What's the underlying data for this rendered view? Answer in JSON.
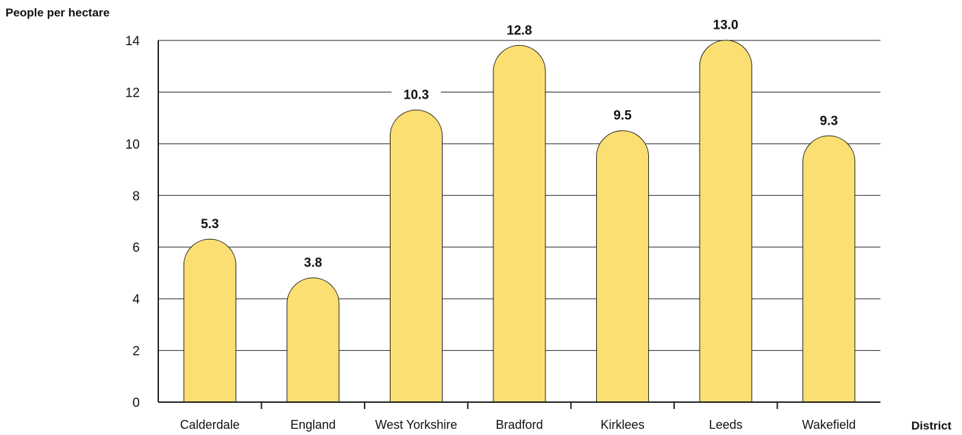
{
  "chart_data": {
    "type": "bar",
    "title": "",
    "ylabel": "People per hectare",
    "xlabel": "District",
    "categories": [
      "Calderdale",
      "England",
      "West Yorkshire",
      "Bradford",
      "Kirklees",
      "Leeds",
      "Wakefield"
    ],
    "values": [
      5.3,
      3.8,
      10.3,
      12.8,
      9.5,
      13.0,
      9.3
    ],
    "data_labels": [
      "5.3",
      "3.8",
      "10.3",
      "12.8",
      "9.5",
      "13.0",
      "9.3"
    ],
    "yticks": [
      "0",
      "2",
      "4",
      "6",
      "8",
      "10",
      "12",
      "14"
    ],
    "ylim": [
      0,
      14
    ],
    "grid": true,
    "legend": "none",
    "bar_color": "#fcdf72",
    "bar_style": "rounded-top"
  }
}
